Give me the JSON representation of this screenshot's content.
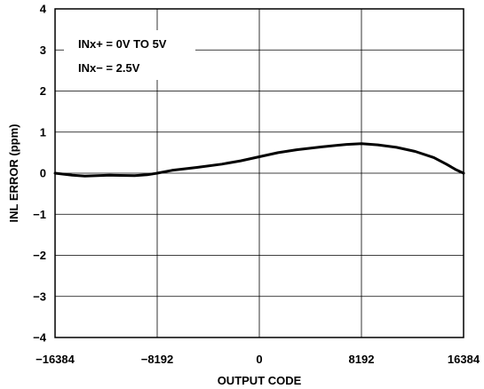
{
  "chart_data": {
    "type": "line",
    "title": "",
    "xlabel": "OUTPUT CODE",
    "ylabel": "INL ERROR (ppm)",
    "xlim": [
      -16384,
      16384
    ],
    "ylim": [
      -4,
      4
    ],
    "x_ticks": [
      -16384,
      -8192,
      0,
      8192,
      16384
    ],
    "x_tick_labels": [
      "−16384",
      "−8192",
      "0",
      "8192",
      "16384"
    ],
    "y_ticks": [
      4,
      3,
      2,
      1,
      0,
      -1,
      -2,
      -3,
      -4
    ],
    "y_tick_labels": [
      "4",
      "3",
      "2",
      "1",
      "0",
      "−1",
      "−2",
      "−3",
      "−4"
    ],
    "grid": true,
    "annotations": [
      "INx+ = 0V TO 5V",
      "INx− = 2.5V"
    ],
    "series": [
      {
        "x": [
          -16384,
          -15000,
          -14000,
          -12000,
          -10000,
          -9000,
          -8192,
          -7000,
          -5000,
          -3000,
          -1500,
          0,
          1500,
          3000,
          5000,
          7000,
          8192,
          9500,
          11000,
          12500,
          14000,
          15000,
          15800,
          16384
        ],
        "y": [
          0.0,
          -0.05,
          -0.07,
          -0.05,
          -0.06,
          -0.04,
          0.0,
          0.07,
          0.14,
          0.22,
          0.3,
          0.4,
          0.5,
          0.57,
          0.64,
          0.7,
          0.72,
          0.69,
          0.63,
          0.53,
          0.38,
          0.22,
          0.08,
          0.0
        ]
      }
    ]
  }
}
